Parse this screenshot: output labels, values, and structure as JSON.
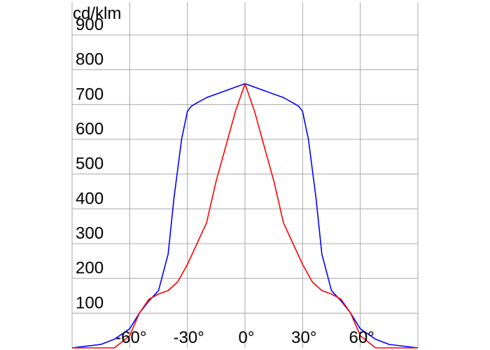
{
  "chart_data": {
    "type": "line",
    "unit_label": "cd/klm",
    "xlim": [
      -90,
      90
    ],
    "ylim": [
      0,
      900
    ],
    "grid": true,
    "x_ticks": [
      {
        "value": -60,
        "label": "-60°"
      },
      {
        "value": -30,
        "label": "-30°"
      },
      {
        "value": 0,
        "label": "0°"
      },
      {
        "value": 30,
        "label": "30°"
      },
      {
        "value": 60,
        "label": "60°"
      }
    ],
    "y_ticks": [
      100,
      200,
      300,
      400,
      500,
      600,
      700,
      800,
      900
    ],
    "series": [
      {
        "color": "#0000ff",
        "x": [
          -90,
          -75,
          -68,
          -60,
          -55,
          -50,
          -45,
          -40,
          -37,
          -33,
          -30,
          -28,
          -25,
          -20,
          -10,
          0,
          10,
          20,
          25,
          28,
          30,
          33,
          37,
          40,
          45,
          50,
          55,
          60,
          68,
          75,
          90
        ],
        "y": [
          0,
          10,
          25,
          55,
          100,
          135,
          165,
          270,
          430,
          600,
          680,
          695,
          705,
          720,
          740,
          760,
          740,
          720,
          705,
          695,
          680,
          600,
          430,
          270,
          165,
          135,
          100,
          55,
          25,
          10,
          0
        ]
      },
      {
        "color": "#ff0000",
        "x": [
          -90,
          -68,
          -60,
          -55,
          -50,
          -45,
          -40,
          -35,
          -30,
          -25,
          -20,
          -15,
          -10,
          -5,
          0,
          5,
          10,
          15,
          20,
          25,
          30,
          35,
          40,
          45,
          50,
          55,
          60,
          68,
          90
        ],
        "y": [
          0,
          0,
          35,
          100,
          140,
          155,
          165,
          190,
          240,
          300,
          360,
          480,
          580,
          680,
          760,
          680,
          580,
          480,
          360,
          300,
          240,
          190,
          165,
          155,
          140,
          100,
          35,
          0,
          0
        ]
      }
    ]
  }
}
